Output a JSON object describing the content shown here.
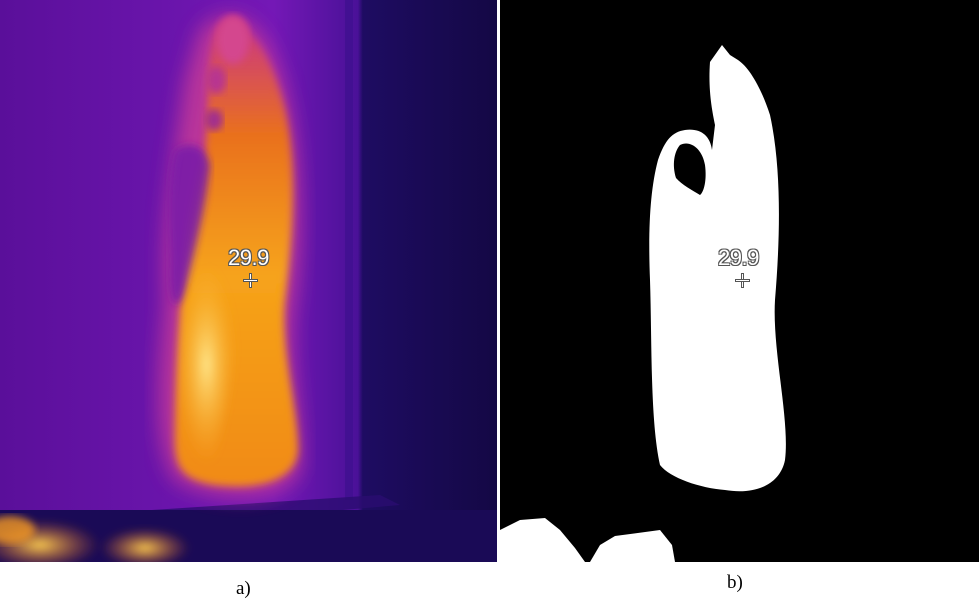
{
  "panels": {
    "a": {
      "caption": "a)",
      "temperature_readout": "29.9",
      "palette": {
        "background": "#6a14b0",
        "background_dark": "#1a0a5a",
        "hot_orange": "#f59a10",
        "hot_yellow": "#ffe27a",
        "warm_pink": "#d2449a"
      }
    },
    "b": {
      "caption": "b)",
      "temperature_readout": "29.9",
      "palette": {
        "background": "#000000",
        "foreground": "#ffffff"
      }
    }
  }
}
